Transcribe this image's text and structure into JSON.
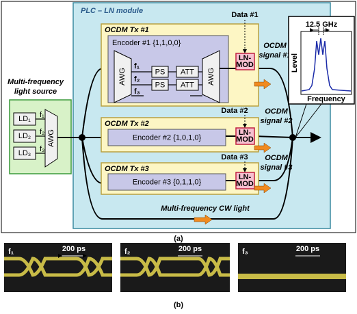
{
  "figure_a": {
    "plc": {
      "title": "PLC – LN module"
    },
    "source": {
      "title": [
        "Multi-frequency",
        "light source"
      ],
      "lds": [
        "LD₁",
        "LD₂",
        "LD₃"
      ],
      "freqs": [
        "f₁",
        "f₂",
        "f₃"
      ],
      "awg": "AWG"
    },
    "tx1": {
      "title": "OCDM Tx #1",
      "data": "Data #1",
      "encoder": "Encoder #1 {1,1,0,0}",
      "freqs": [
        "f₁",
        "f₂",
        "f₃"
      ],
      "ps": [
        "PS",
        "PS"
      ],
      "att": [
        "ATT",
        "ATT"
      ],
      "awg": [
        "AWG",
        "AWG"
      ],
      "lnmod": [
        "LN-",
        "MOD"
      ],
      "signal": [
        "OCDM",
        "signal #1"
      ]
    },
    "tx2": {
      "title": "OCDM Tx #2",
      "data": "Data #2",
      "encoder": "Encoder #2 {1,0,1,0}",
      "lnmod": [
        "LN-",
        "MOD"
      ],
      "signal": [
        "OCDM",
        "signal #2"
      ]
    },
    "tx3": {
      "title": "OCDM Tx #3",
      "data": "Data #3",
      "encoder": "Encoder #3 {0,1,1,0}",
      "lnmod": [
        "LN-",
        "MOD"
      ],
      "signal": [
        "OCDM",
        "signal #3"
      ]
    },
    "cw": "Multi-frequency CW light",
    "spectrum": {
      "spacing": "12.5 GHz",
      "y_label": "Level",
      "x_label": "Frequency"
    },
    "caption": "(a)"
  },
  "figure_b": {
    "panels": [
      {
        "freq": "f₁",
        "scale": "200 ps"
      },
      {
        "freq": "f₂",
        "scale": "200 ps"
      },
      {
        "freq": "f₃",
        "scale": "200 ps"
      }
    ],
    "caption": "(b)"
  }
}
